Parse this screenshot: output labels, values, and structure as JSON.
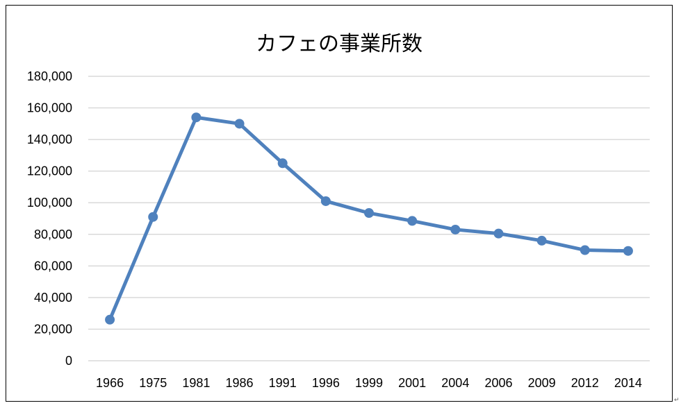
{
  "chart_data": {
    "type": "line",
    "title": "カフェの事業所数",
    "categories": [
      "1966",
      "1975",
      "1981",
      "1986",
      "1991",
      "1996",
      "1999",
      "2001",
      "2004",
      "2006",
      "2009",
      "2012",
      "2014"
    ],
    "series": [
      {
        "values": [
          26000,
          91000,
          154000,
          150000,
          125000,
          101000,
          93500,
          88500,
          83000,
          80500,
          76000,
          70000,
          69500
        ]
      }
    ],
    "y_ticks": [
      "0",
      "20,000",
      "40,000",
      "60,000",
      "80,000",
      "100,000",
      "120,000",
      "140,000",
      "160,000",
      "180,000"
    ],
    "ylim": [
      0,
      180000
    ],
    "grid": true,
    "legend": "none",
    "colors": {
      "line": "#4f81bd",
      "grid": "#d9d9d9",
      "frame": "#000000"
    }
  },
  "corner_mark": "↵"
}
